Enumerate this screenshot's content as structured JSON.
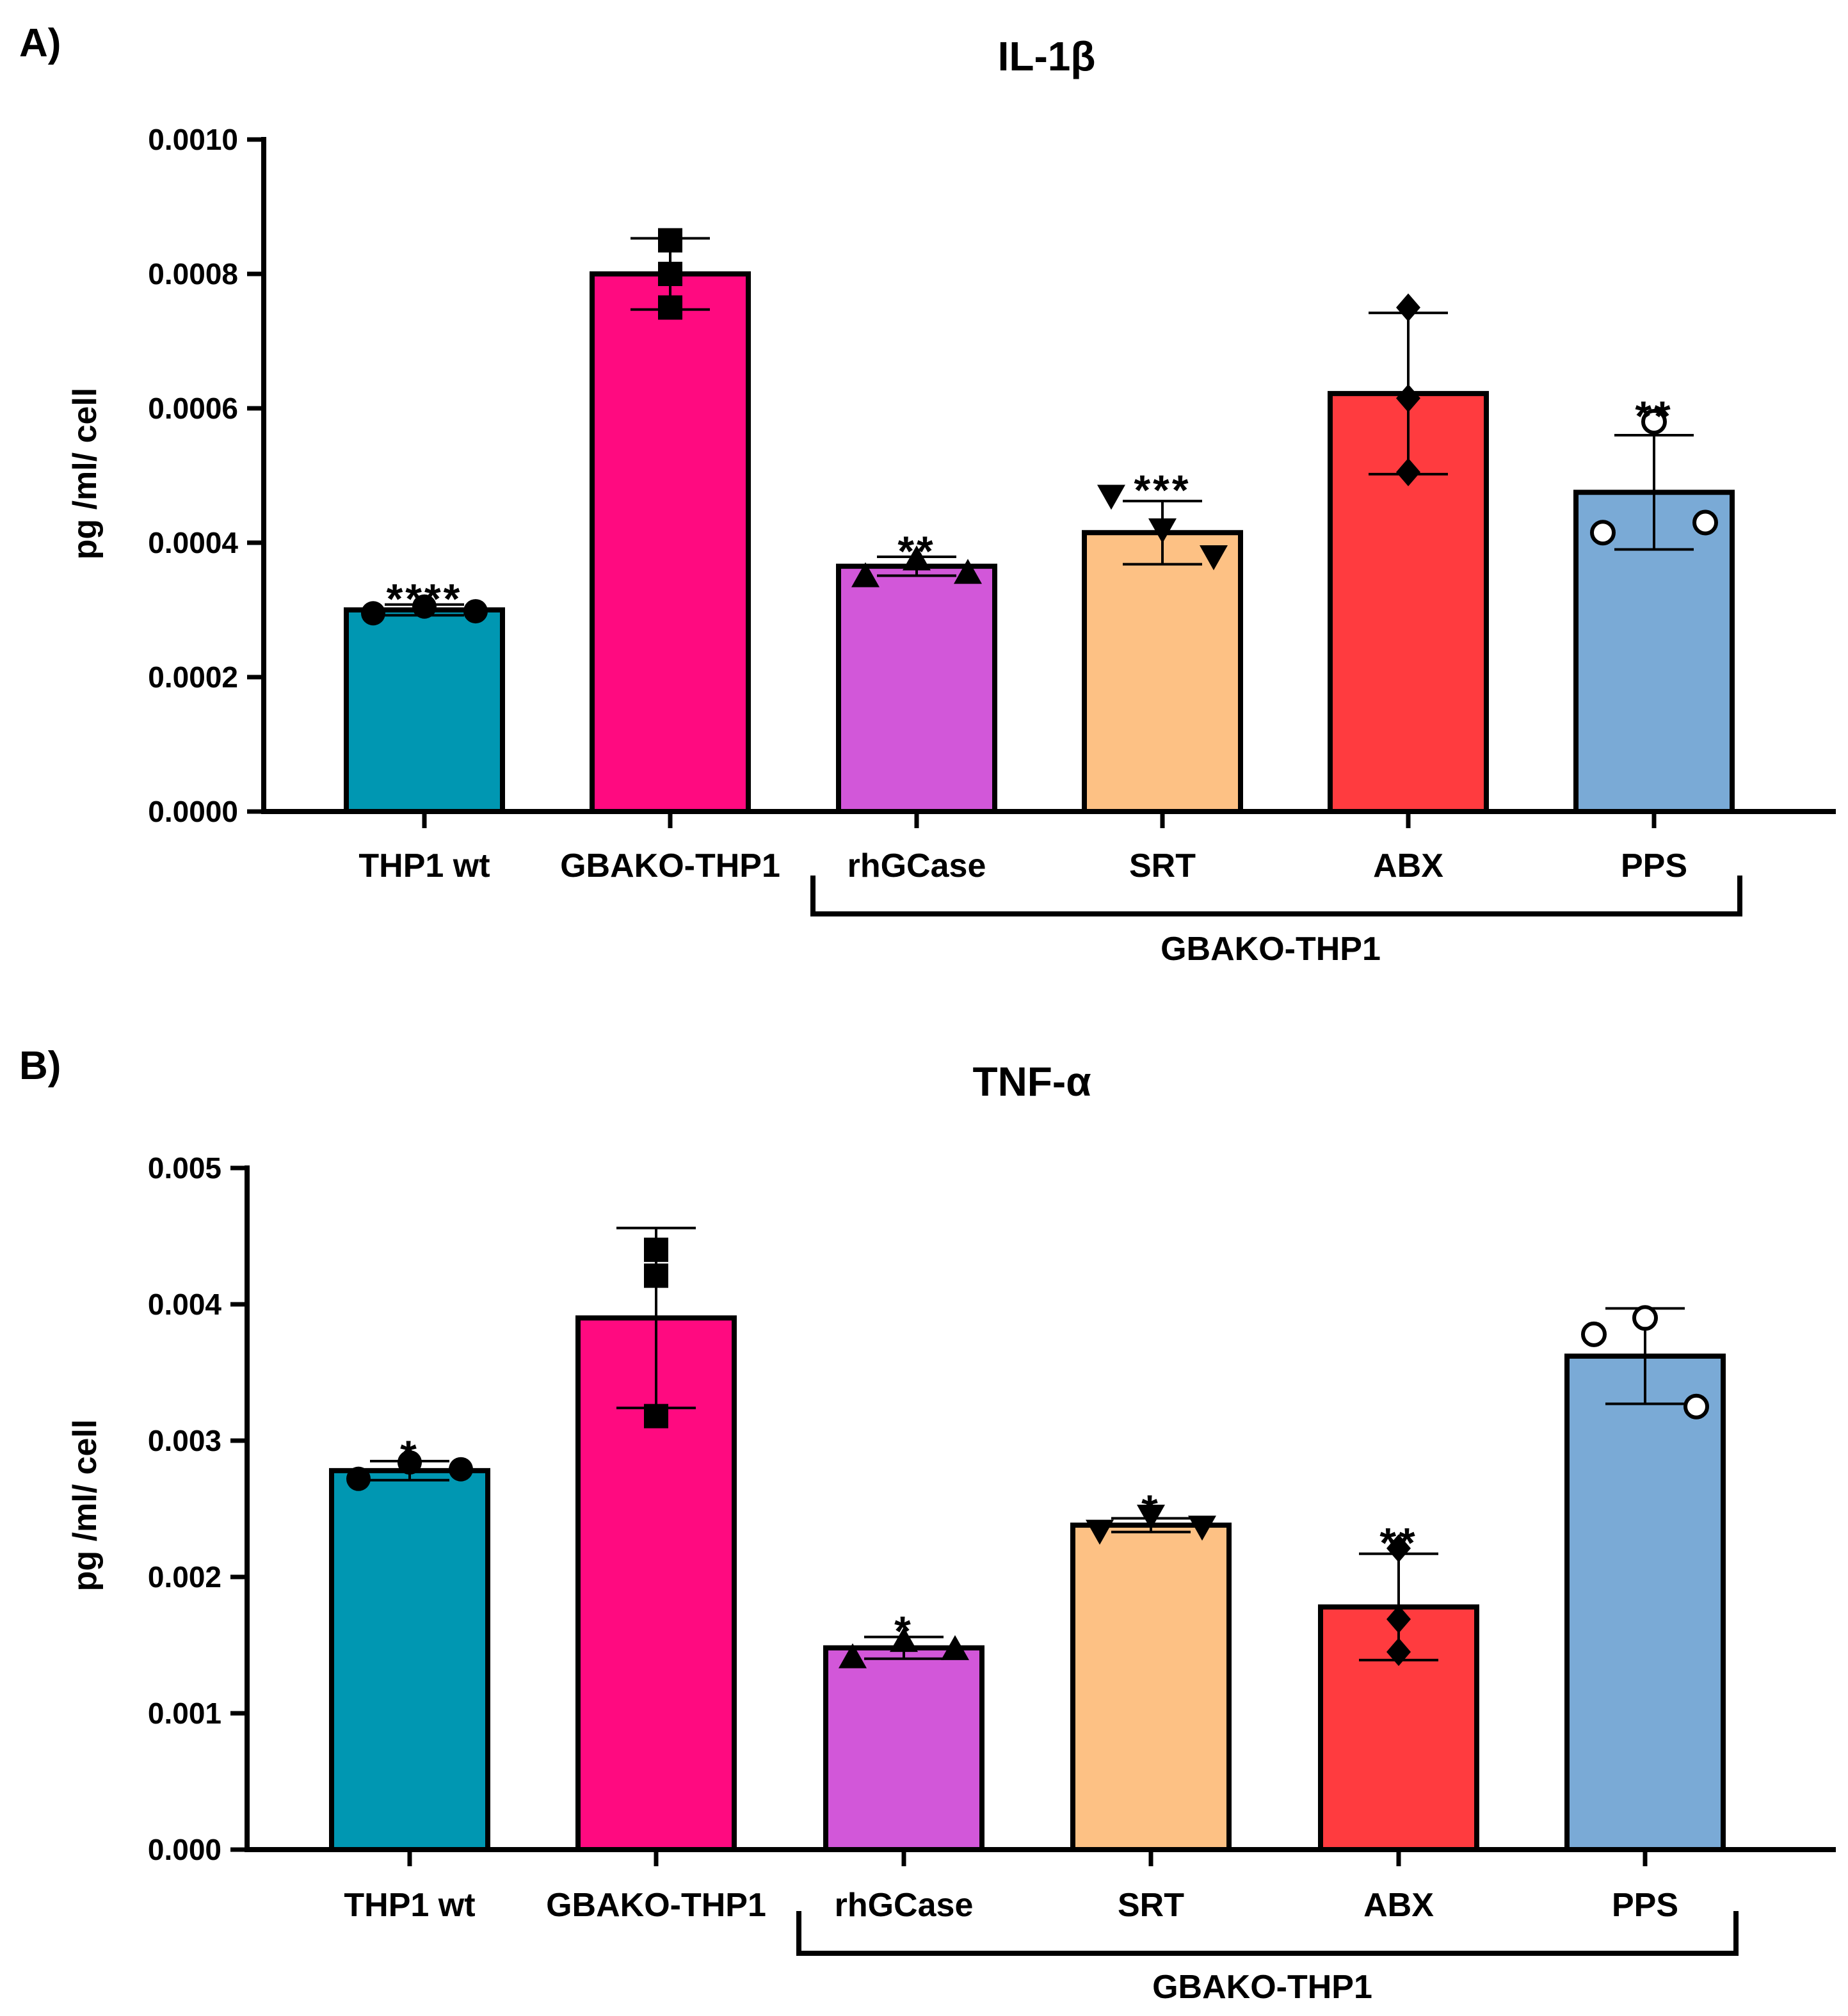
{
  "panels": [
    {
      "label": "A)",
      "chart_data": {
        "type": "bar",
        "title": "IL-1β",
        "ylabel": "pg /ml/ cell",
        "xlabel": "",
        "ylim": [
          0,
          0.001
        ],
        "yticks": [
          0,
          0.0002,
          0.0004,
          0.0006,
          0.0008,
          0.001
        ],
        "ytick_labels": [
          "0.0000",
          "0.0002",
          "0.0004",
          "0.0006",
          "0.0008",
          "0.0010"
        ],
        "categories": [
          "THP1 wt",
          "GBAKO-THP1",
          "rhGCase",
          "SRT",
          "ABX",
          "PPS"
        ],
        "values": [
          0.0003,
          0.0008,
          0.000365,
          0.000415,
          0.000622,
          0.000475
        ],
        "errors": [
          8e-06,
          5.3e-05,
          1.4e-05,
          4.7e-05,
          0.00012,
          8.5e-05
        ],
        "points": [
          [
            0.000295,
            0.000305,
            0.000298
          ],
          [
            0.00085,
            0.0008,
            0.00075
          ],
          [
            0.00035,
            0.000375,
            0.000355
          ],
          [
            0.00047,
            0.00042,
            0.00038
          ],
          [
            0.00075,
            0.000615,
            0.000505
          ],
          [
            0.00058,
            0.000415,
            0.00043
          ]
        ],
        "marker_shapes": [
          "circle",
          "square",
          "triangle-up",
          "triangle-down",
          "diamond",
          "open-circle"
        ],
        "significance": [
          "****",
          "",
          "**",
          "***",
          "",
          "**"
        ],
        "colors": [
          "#0097b2",
          "#ff0a80",
          "#d257d9",
          "#fdc184",
          "#ff3b3f",
          "#7aaad6"
        ],
        "group_bracket": {
          "label": "GBAKO-THP1",
          "from_category": 2,
          "to_category": 5
        }
      }
    },
    {
      "label": "B)",
      "chart_data": {
        "type": "bar",
        "title": "TNF-α",
        "ylabel": "pg /ml/ cell",
        "xlabel": "",
        "ylim": [
          0,
          0.005
        ],
        "yticks": [
          0,
          0.001,
          0.002,
          0.003,
          0.004,
          0.005
        ],
        "ytick_labels": [
          "0.000",
          "0.001",
          "0.002",
          "0.003",
          "0.004",
          "0.005"
        ],
        "categories": [
          "THP1 wt",
          "GBAKO-THP1",
          "rhGCase",
          "SRT",
          "ABX",
          "PPS"
        ],
        "values": [
          0.00278,
          0.0039,
          0.00148,
          0.00238,
          0.00178,
          0.00362
        ],
        "errors": [
          7e-05,
          0.00066,
          8e-05,
          5e-05,
          0.00039,
          0.00035
        ],
        "points": [
          [
            0.00272,
            0.00284,
            0.00279
          ],
          [
            0.0044,
            0.00421,
            0.00318
          ],
          [
            0.00141,
            0.00153,
            0.00147
          ],
          [
            0.00234,
            0.00245,
            0.00237
          ],
          [
            0.00221,
            0.00169,
            0.00145
          ],
          [
            0.0039,
            0.00378,
            0.00325
          ]
        ],
        "marker_shapes": [
          "circle",
          "square",
          "triangle-up",
          "triangle-down",
          "diamond",
          "open-circle"
        ],
        "significance": [
          "*",
          "",
          "*",
          "*",
          "**",
          ""
        ],
        "colors": [
          "#0097b2",
          "#ff0a80",
          "#d257d9",
          "#fdc184",
          "#ff3b3f",
          "#7aaad6"
        ],
        "group_bracket": {
          "label": "GBAKO-THP1",
          "from_category": 2,
          "to_category": 5
        }
      }
    }
  ]
}
